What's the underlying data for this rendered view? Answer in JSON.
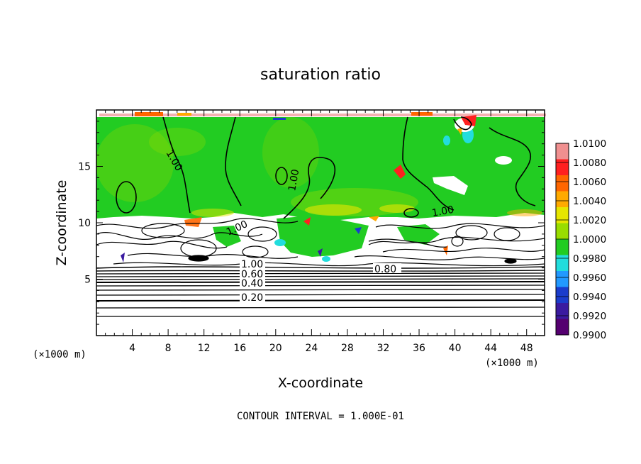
{
  "chart_data": {
    "type": "heatmap",
    "title": "saturation ratio",
    "xlabel": "X-coordinate",
    "ylabel": "Z-coordinate",
    "x_unit_label": "(×1000 m)",
    "xlim": [
      0,
      50
    ],
    "ylim": [
      0,
      20
    ],
    "x_ticks": [
      4,
      8,
      12,
      16,
      20,
      24,
      28,
      32,
      36,
      40,
      44,
      48
    ],
    "y_ticks": [
      5,
      10,
      15
    ],
    "colorbar": {
      "range": [
        0.99,
        1.01
      ],
      "labels": [
        "1.0100",
        "1.0080",
        "1.0060",
        "1.0040",
        "1.0020",
        "1.0000",
        "0.9980",
        "0.9960",
        "0.9940",
        "0.9920",
        "0.9900"
      ],
      "colors": [
        "#f09090",
        "#ff2020",
        "#ff6600",
        "#ffaa00",
        "#e6e600",
        "#99dd00",
        "#22cc22",
        "#22dddd",
        "#2299ff",
        "#1a3ccc",
        "#3a1aa0",
        "#550070"
      ]
    },
    "contour_labels": [
      "1.00",
      "1.00",
      "1.00",
      "1.00",
      "1.00",
      "0.80",
      "0.60",
      "0.40",
      "0.20"
    ],
    "contour_interval_text": "CONTOUR INTERVAL = 1.000E-01"
  }
}
